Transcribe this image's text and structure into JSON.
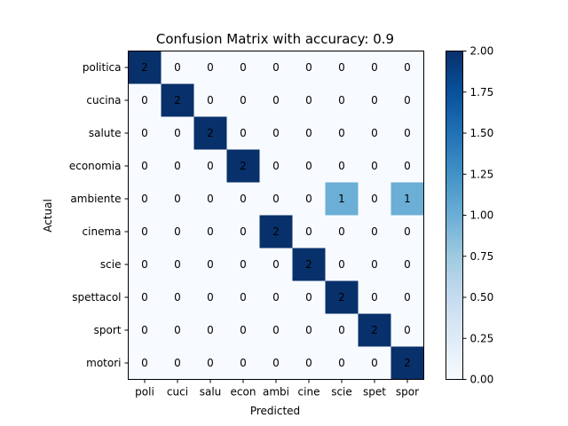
{
  "chart_data": {
    "type": "heatmap",
    "title": "Confusion Matrix with accuracy: 0.9",
    "xlabel": "Predicted",
    "ylabel": "Actual",
    "rows": [
      "politica",
      "cucina",
      "salute",
      "economia",
      "ambiente",
      "cinema",
      "scie",
      "spettacol",
      "sport",
      "motori"
    ],
    "columns": [
      "poli",
      "cuci",
      "salu",
      "econ",
      "ambi",
      "cine",
      "scie",
      "spet",
      "spor"
    ],
    "values": [
      [
        2,
        0,
        0,
        0,
        0,
        0,
        0,
        0,
        0
      ],
      [
        0,
        2,
        0,
        0,
        0,
        0,
        0,
        0,
        0
      ],
      [
        0,
        0,
        2,
        0,
        0,
        0,
        0,
        0,
        0
      ],
      [
        0,
        0,
        0,
        2,
        0,
        0,
        0,
        0,
        0
      ],
      [
        0,
        0,
        0,
        0,
        0,
        0,
        1,
        0,
        1
      ],
      [
        0,
        0,
        0,
        0,
        2,
        0,
        0,
        0,
        0
      ],
      [
        0,
        0,
        0,
        0,
        0,
        2,
        0,
        0,
        0
      ],
      [
        0,
        0,
        0,
        0,
        0,
        0,
        2,
        0,
        0
      ],
      [
        0,
        0,
        0,
        0,
        0,
        0,
        0,
        2,
        0
      ],
      [
        0,
        0,
        0,
        0,
        0,
        0,
        0,
        0,
        2
      ]
    ],
    "colorbar": {
      "range": [
        0,
        2
      ],
      "ticks": [
        "0.00",
        "0.25",
        "0.50",
        "0.75",
        "1.00",
        "1.25",
        "1.50",
        "1.75",
        "2.00"
      ],
      "colormap": "Blues",
      "colors": [
        "#f7fbff",
        "#deebf7",
        "#c6dbef",
        "#9ecae1",
        "#6baed6",
        "#4292c6",
        "#2171b5",
        "#08519c",
        "#08306b"
      ]
    }
  }
}
